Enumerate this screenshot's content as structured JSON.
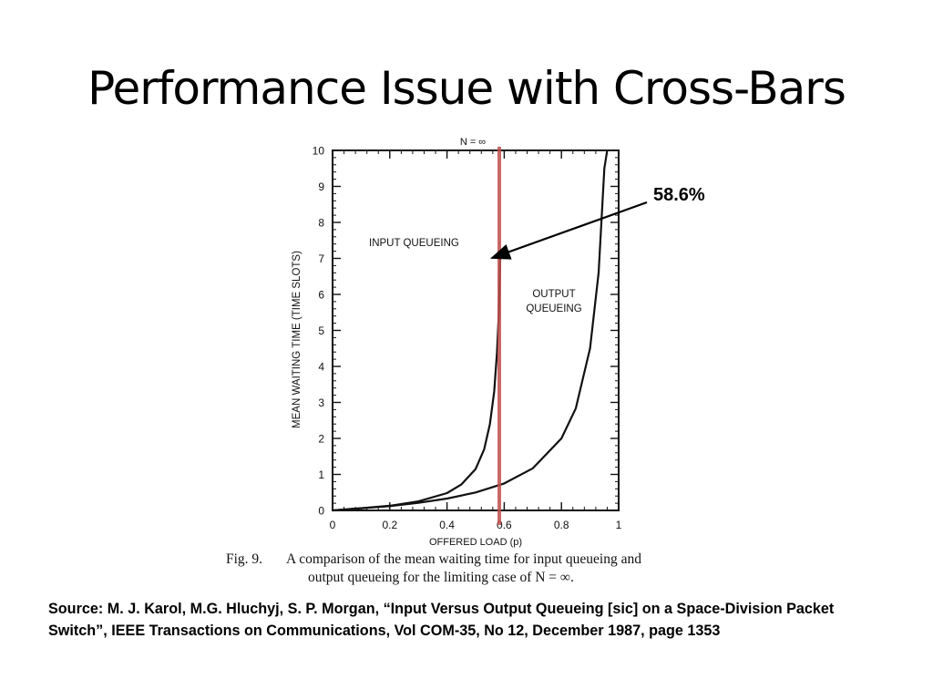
{
  "slide": {
    "title": "Performance Issue with Cross-Bars",
    "annotation": "58.6%",
    "caption_number": "Fig. 9.",
    "caption_line1": "A comparison of the mean waiting time for input queueing and",
    "caption_line2": "output queueing for the limiting case of N = ∞.",
    "source_note": "Source: M. J. Karol, M.G. Hluchyj, S. P. Morgan, “Input Versus Output Queueing [sic] on a Space-Division Packet Switch”, IEEE Transactions on Communications, Vol COM-35, No 12, December 1987, page 1353",
    "colors": {
      "marker_line": "#c0504d",
      "ink": "#111111"
    }
  },
  "chart_data": {
    "type": "line",
    "title": "N = ∞",
    "xlabel": "OFFERED LOAD (p)",
    "ylabel": "MEAN WAITING TIME (TIME SLOTS)",
    "xlim": [
      0,
      1
    ],
    "ylim": [
      0,
      10
    ],
    "x_ticks": [
      "0",
      "0.2",
      "0.4",
      "0.6",
      "0.8",
      "1"
    ],
    "y_ticks": [
      "0",
      "1",
      "2",
      "3",
      "4",
      "5",
      "6",
      "7",
      "8",
      "9",
      "10"
    ],
    "grid": false,
    "series": [
      {
        "name": "INPUT QUEUEING",
        "x": [
          0,
          0.1,
          0.2,
          0.3,
          0.4,
          0.45,
          0.5,
          0.53,
          0.55,
          0.565,
          0.575,
          0.582,
          0.586
        ],
        "y": [
          0,
          0.06,
          0.13,
          0.25,
          0.48,
          0.72,
          1.15,
          1.7,
          2.4,
          3.3,
          4.4,
          5.6,
          7.0
        ]
      },
      {
        "name": "OUTPUT QUEUEING",
        "x": [
          0,
          0.1,
          0.2,
          0.3,
          0.4,
          0.5,
          0.6,
          0.7,
          0.8,
          0.85,
          0.9,
          0.93,
          0.95,
          0.96
        ],
        "y": [
          0,
          0.06,
          0.12,
          0.21,
          0.33,
          0.5,
          0.75,
          1.17,
          2.0,
          2.83,
          4.5,
          6.6,
          9.5,
          10
        ]
      }
    ],
    "marker": {
      "x": 0.586,
      "label": "58.6%"
    },
    "series_labels": {
      "input": "INPUT QUEUEING",
      "output_line1": "OUTPUT",
      "output_line2": "QUEUEING"
    }
  }
}
